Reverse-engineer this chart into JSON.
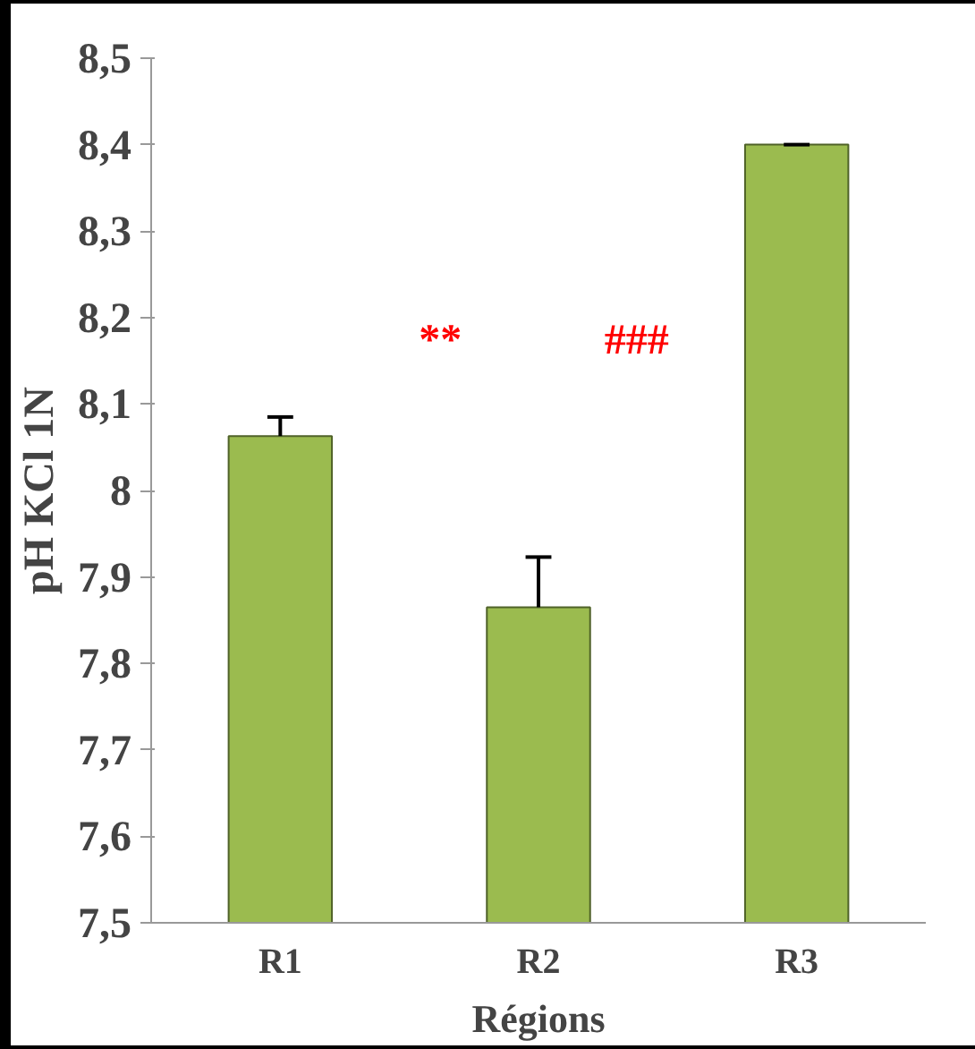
{
  "chart_data": {
    "type": "bar",
    "xlabel": "Régions",
    "ylabel": "pH KCl 1N",
    "categories": [
      "R1",
      "R2",
      "R3"
    ],
    "values": [
      8.063,
      7.865,
      8.4
    ],
    "errors": [
      [
        8.063,
        8.085
      ],
      [
        7.865,
        7.923
      ],
      [
        8.4,
        8.4
      ]
    ],
    "color": "#9bbb4f",
    "ylim": [
      7.5,
      8.5
    ],
    "yticks": [
      {
        "value": 7.5,
        "label": "7,5"
      },
      {
        "value": 7.6,
        "label": "7,6"
      },
      {
        "value": 7.7,
        "label": "7,7"
      },
      {
        "value": 7.8,
        "label": "7,8"
      },
      {
        "value": 7.9,
        "label": "7,9"
      },
      8,
      {
        "value": 8.1,
        "label": "8,1"
      },
      {
        "value": 8.2,
        "label": "8,2"
      },
      {
        "value": 8.3,
        "label": "8,3"
      },
      {
        "value": 8.4,
        "label": "8,4"
      },
      {
        "value": 8.5,
        "label": "8,5"
      }
    ],
    "annotations": [
      "**",
      "###"
    ],
    "grid": false
  }
}
